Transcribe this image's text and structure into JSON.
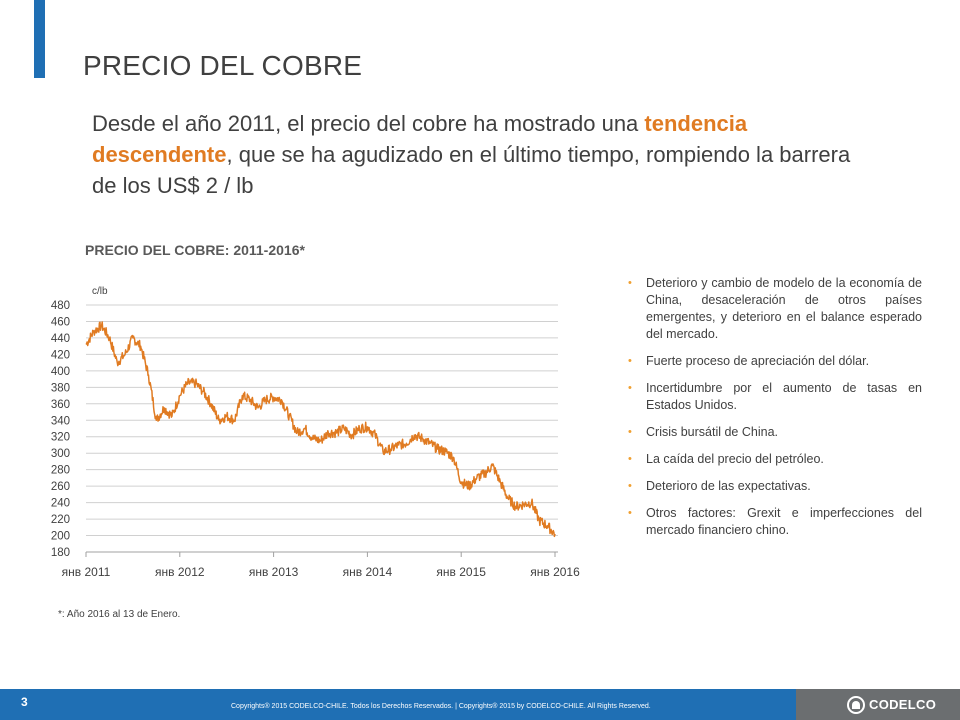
{
  "header": {
    "title": "PRECIO DEL COBRE"
  },
  "intro": {
    "part1": "Desde el año 2011, el precio del cobre ha mostrado una ",
    "highlight": "tendencia descendente",
    "part2": ", que se ha agudizado en el último tiempo, rompiendo la barrera de los US$ 2 / lb"
  },
  "chart_data": {
    "type": "line",
    "title": "PRECIO DEL COBRE: 2011-2016*",
    "ylabel": "c/lb",
    "xlabel": "",
    "ylim": [
      180,
      480
    ],
    "yticks": [
      180,
      200,
      220,
      240,
      260,
      280,
      300,
      320,
      340,
      360,
      380,
      400,
      420,
      440,
      460,
      480
    ],
    "x_tick_labels": [
      "янв 2011",
      "янв 2012",
      "янв 2013",
      "янв 2014",
      "янв 2015",
      "янв 2016"
    ],
    "xlim": [
      "2011-01",
      "2016-01-13"
    ],
    "grid": "horizontal",
    "legend": "none",
    "series_color": "#e07b22",
    "series": [
      {
        "x": [
          "2011-01",
          "2011-02",
          "2011-03",
          "2011-04",
          "2011-05",
          "2011-06",
          "2011-07",
          "2011-08",
          "2011-09",
          "2011-10",
          "2011-11",
          "2011-12",
          "2012-01",
          "2012-02",
          "2012-03",
          "2012-04",
          "2012-05",
          "2012-06",
          "2012-07",
          "2012-08",
          "2012-09",
          "2012-10",
          "2012-11",
          "2012-12",
          "2013-01",
          "2013-02",
          "2013-03",
          "2013-04",
          "2013-05",
          "2013-06",
          "2013-07",
          "2013-08",
          "2013-09",
          "2013-10",
          "2013-11",
          "2013-12",
          "2014-01",
          "2014-02",
          "2014-03",
          "2014-04",
          "2014-05",
          "2014-06",
          "2014-07",
          "2014-08",
          "2014-09",
          "2014-10",
          "2014-11",
          "2014-12",
          "2015-01",
          "2015-02",
          "2015-03",
          "2015-04",
          "2015-05",
          "2015-06",
          "2015-07",
          "2015-08",
          "2015-09",
          "2015-10",
          "2015-11",
          "2015-12",
          "2016-01"
        ],
        "values": [
          432,
          448,
          455,
          440,
          410,
          420,
          440,
          430,
          395,
          340,
          355,
          345,
          370,
          385,
          385,
          375,
          360,
          340,
          345,
          340,
          370,
          365,
          355,
          365,
          368,
          365,
          345,
          325,
          330,
          318,
          315,
          325,
          325,
          330,
          322,
          330,
          332,
          322,
          302,
          305,
          310,
          312,
          322,
          318,
          312,
          305,
          302,
          295,
          265,
          260,
          270,
          275,
          285,
          265,
          245,
          235,
          238,
          240,
          218,
          212,
          202
        ]
      }
    ]
  },
  "footnote": "*: Año 2016 al 13 de Enero.",
  "bullets": [
    "Deterioro y cambio de modelo de la economía de China, desaceleración de otros países emergentes, y deterioro en el balance esperado del mercado.",
    "Fuerte proceso de apreciación del dólar.",
    "Incertidumbre por el aumento de tasas en Estados Unidos.",
    "Crisis bursátil de China.",
    "La caída del precio del petróleo.",
    "Deterioro de las expectativas.",
    "Otros factores: Grexit e imperfecciones del mercado financiero chino."
  ],
  "footer": {
    "page_number": "3",
    "copyright": "Copyrights® 2015 CODELCO-CHILE. Todos los Derechos Reservados. | Copyrights® 2015 by CODELCO-CHILE. All Rights Reserved.",
    "logo_text": "CODELCO"
  },
  "colors": {
    "accent_blue": "#1f6fb4",
    "highlight_orange": "#e07b22",
    "bullet_orange": "#f0a030",
    "logo_gray": "#6b6e70"
  }
}
